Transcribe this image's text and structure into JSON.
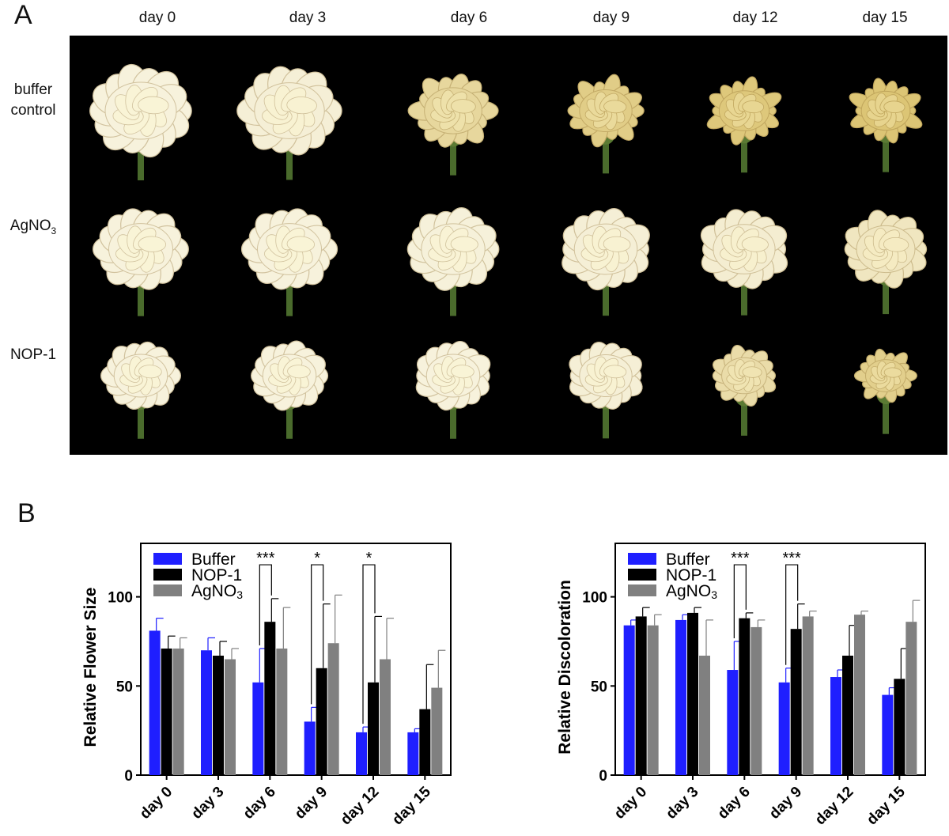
{
  "panel_a": {
    "letter": "A",
    "days": [
      "day 0",
      "day 3",
      "day 6",
      "day 9",
      "day 12",
      "day 15"
    ],
    "rows": [
      {
        "label_line1": "buffer",
        "label_line2": "control",
        "petal": "#e9d89a",
        "wilt": [
          0.0,
          0.05,
          0.55,
          0.75,
          0.85,
          0.9
        ]
      },
      {
        "label_line1": "AgNO",
        "label_sub": "3",
        "petal": "#f6f1d8",
        "wilt": [
          0.0,
          0.0,
          0.02,
          0.05,
          0.1,
          0.25
        ]
      },
      {
        "label_line1": "NOP-1",
        "petal": "#f6f1d8",
        "wilt": [
          0.0,
          0.0,
          0.0,
          0.05,
          0.45,
          0.7
        ]
      }
    ],
    "colors": {
      "background": "#000000",
      "stem": "#4a6b2c",
      "healthy": "#f7f2dc",
      "withered": "#d9c06a"
    }
  },
  "panel_b": {
    "letter": "B"
  },
  "chart_data": [
    {
      "type": "bar",
      "ylabel": "Relative Flower Size",
      "ylim": [
        0,
        130
      ],
      "yticks": [
        0,
        50,
        100
      ],
      "categories": [
        "day 0",
        "day 3",
        "day 6",
        "day 9",
        "day 12",
        "day 15"
      ],
      "legend_position": "top-left",
      "series": [
        {
          "name": "Buffer",
          "color": "#1f1fff",
          "values": [
            81,
            70,
            52,
            30,
            24,
            24
          ],
          "errors": [
            7,
            7,
            19,
            8,
            3,
            2
          ]
        },
        {
          "name": "NOP-1",
          "color": "#000000",
          "values": [
            71,
            67,
            86,
            60,
            52,
            37
          ],
          "errors": [
            7,
            8,
            13,
            36,
            37,
            25
          ]
        },
        {
          "name": "AgNO",
          "name_sub": "3",
          "color": "#808080",
          "values": [
            71,
            65,
            71,
            74,
            65,
            49
          ],
          "errors": [
            6,
            6,
            23,
            27,
            23,
            21
          ]
        }
      ],
      "significance": [
        {
          "category": 2,
          "label": "***"
        },
        {
          "category": 3,
          "label": "*"
        },
        {
          "category": 4,
          "label": "*"
        }
      ]
    },
    {
      "type": "bar",
      "ylabel": "Relative Discoloration",
      "ylim": [
        0,
        130
      ],
      "yticks": [
        0,
        50,
        100
      ],
      "categories": [
        "day 0",
        "day 3",
        "day 6",
        "day 9",
        "day 12",
        "day 15"
      ],
      "legend_position": "top-left",
      "series": [
        {
          "name": "Buffer",
          "color": "#1f1fff",
          "values": [
            84,
            87,
            59,
            52,
            55,
            45
          ],
          "errors": [
            3,
            3,
            16,
            8,
            4,
            4
          ]
        },
        {
          "name": "NOP-1",
          "color": "#000000",
          "values": [
            89,
            91,
            88,
            82,
            67,
            54
          ],
          "errors": [
            5,
            3,
            3,
            14,
            17,
            17
          ]
        },
        {
          "name": "AgNO",
          "name_sub": "3",
          "color": "#808080",
          "values": [
            84,
            67,
            83,
            89,
            90,
            86
          ],
          "errors": [
            6,
            20,
            4,
            3,
            2,
            12
          ]
        }
      ],
      "significance": [
        {
          "category": 2,
          "label": "***"
        },
        {
          "category": 3,
          "label": "***"
        }
      ]
    }
  ]
}
